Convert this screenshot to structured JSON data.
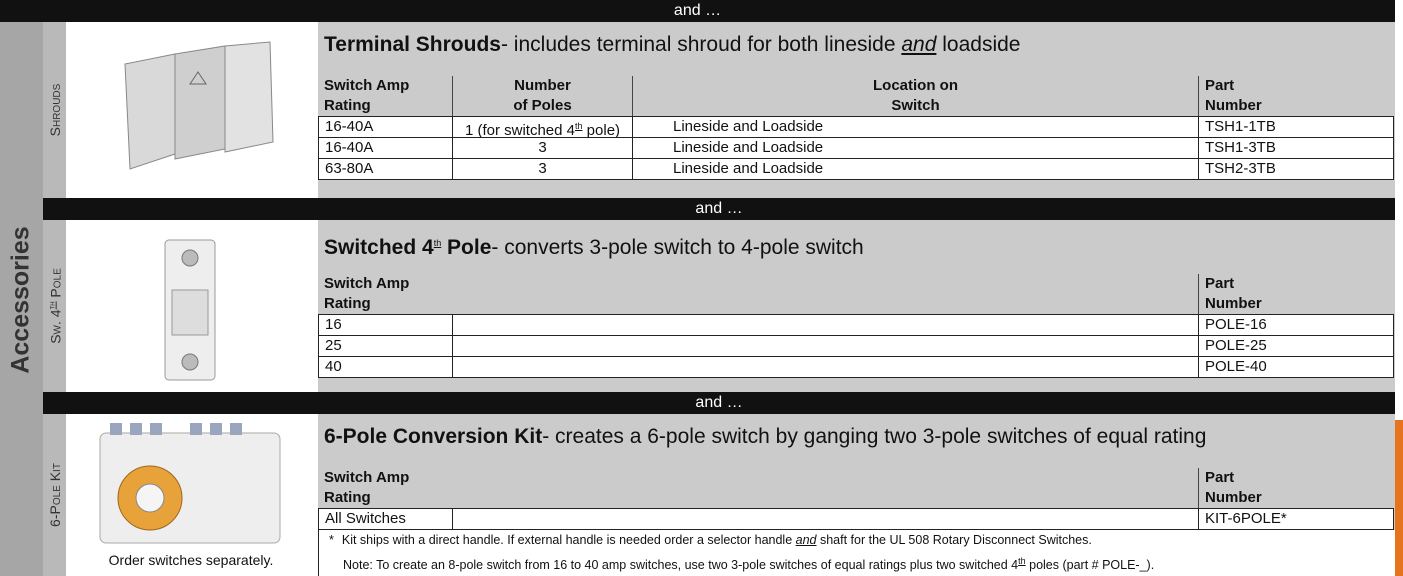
{
  "top_bar": "and …",
  "side_label": "Accessories",
  "sections": [
    {
      "tab": [
        "Shrouds"
      ],
      "title": [
        "Terminal Shrouds"
      ],
      "subtitle": [
        "- includes terminal shroud for both lineside ",
        "and",
        " loadside"
      ],
      "columns": [
        [
          "Switch Amp",
          "Rating"
        ],
        [
          "Number",
          "of Poles"
        ],
        [
          "Location on",
          "Switch"
        ],
        [
          "Part",
          "Number"
        ]
      ],
      "rows": [
        [
          "16-40A",
          [
            "1 (for switched 4",
            "th",
            " pole)"
          ],
          "Lineside and Loadside",
          "TSH1-1TB"
        ],
        [
          "16-40A",
          "3",
          "Lineside and Loadside",
          "TSH1-3TB"
        ],
        [
          "63-80A",
          "3",
          "Lineside and Loadside",
          "TSH2-3TB"
        ]
      ]
    },
    {
      "separator": "and …",
      "tab": [
        "Sw. 4",
        "th",
        " Pole"
      ],
      "title": [
        "Switched 4",
        "th",
        " Pole"
      ],
      "subtitle": [
        "- converts 3-pole switch to 4-pole switch"
      ],
      "columns": [
        [
          "Switch Amp",
          "Rating"
        ],
        [
          "Part",
          "Number"
        ]
      ],
      "rows": [
        [
          "16",
          "POLE-16"
        ],
        [
          "25",
          "POLE-25"
        ],
        [
          "40",
          "POLE-40"
        ]
      ]
    },
    {
      "separator": "and …",
      "tab": [
        "6-Pole Kit"
      ],
      "title": [
        "6-Pole Conversion Kit"
      ],
      "subtitle": [
        "- creates a 6-pole switch by ganging two 3-pole switches of equal rating"
      ],
      "columns": [
        [
          "Switch Amp",
          "Rating"
        ],
        [
          "Part",
          "Number"
        ]
      ],
      "rows": [
        [
          "All Switches",
          "KIT-6POLE*"
        ]
      ],
      "note_marker": "*",
      "note": [
        "Kit ships with a direct handle. If external handle is needed order a selector handle ",
        "and",
        " shaft for the UL 508 Rotary Disconnect Switches."
      ],
      "note2": [
        "Note: To create an 8-pole switch from 16 to 40 amp switches, use two 3-pole switches of equal ratings plus two switched 4",
        "th",
        " poles (part # POLE-_)."
      ],
      "caption": "Order switches separately."
    }
  ]
}
